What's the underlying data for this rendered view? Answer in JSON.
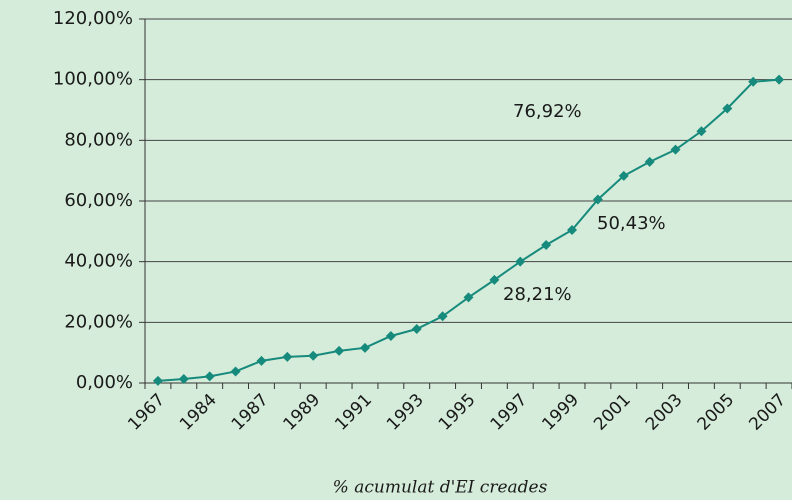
{
  "chart_data": {
    "type": "line",
    "xlabel": "% acumulat d'EI creades",
    "categories": [
      "1967",
      null,
      "1984",
      null,
      "1987",
      null,
      "1989",
      null,
      "1991",
      null,
      "1993",
      null,
      "1995",
      null,
      "1997",
      null,
      "1999",
      null,
      "2001",
      null,
      "2003",
      null,
      "2005",
      null,
      "2007"
    ],
    "series": [
      {
        "color": "#168a7c",
        "values": [
          0.7,
          1.3,
          2.2,
          3.8,
          7.3,
          8.6,
          9.0,
          10.6,
          11.6,
          15.5,
          17.8,
          22.0,
          28.21,
          34.0,
          40.0,
          45.5,
          50.43,
          60.5,
          68.3,
          72.9,
          76.92,
          83.0,
          90.5,
          99.3,
          100.0
        ]
      }
    ],
    "ylim": [
      0,
      120
    ],
    "yticks": [
      {
        "value": 0,
        "label": "0,00%"
      },
      {
        "value": 20,
        "label": "20,00%"
      },
      {
        "value": 40,
        "label": "40,00%"
      },
      {
        "value": 60,
        "label": "60,00%"
      },
      {
        "value": 80,
        "label": "80,00%"
      },
      {
        "value": 100,
        "label": "100,00%"
      },
      {
        "value": 120,
        "label": "120,00%"
      }
    ],
    "grid": true,
    "annotations": [
      "28,21%",
      "50,43%",
      "76,92%"
    ]
  }
}
